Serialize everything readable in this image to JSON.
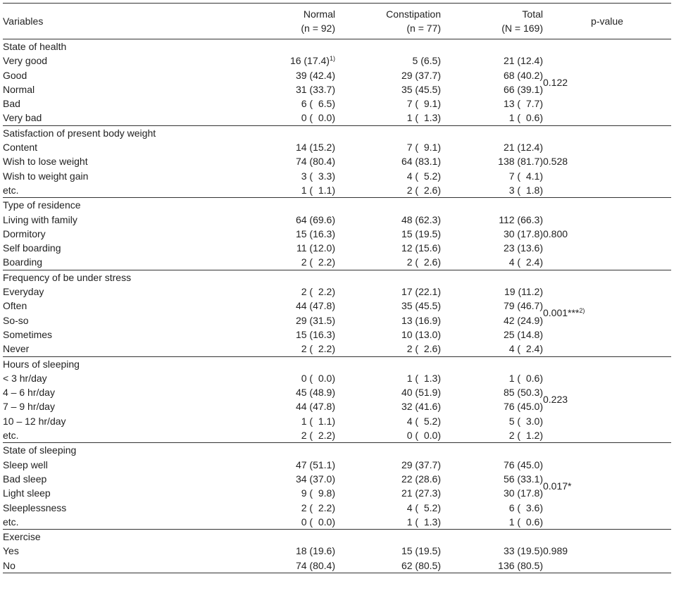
{
  "headers": {
    "variables": "Variables",
    "normal": "Normal",
    "normal_n": "(n = 92)",
    "constipation": "Constipation",
    "constipation_n": "(n = 77)",
    "total": "Total",
    "total_n": "(N = 169)",
    "pvalue": "p-value"
  },
  "sections": [
    {
      "title": "State of health",
      "pvalue": "0.122",
      "rows": [
        {
          "label": "Very good",
          "normal": "16 (17.4)",
          "normal_sup": "1)",
          "constipation": "5 (6.5)",
          "total": "21 (12.4)"
        },
        {
          "label": "Good",
          "normal": "39 (42.4)",
          "constipation": "29 (37.7)",
          "total": "68 (40.2)"
        },
        {
          "label": "Normal",
          "normal": "31 (33.7)",
          "constipation": "35 (45.5)",
          "total": "66 (39.1)"
        },
        {
          "label": "Bad",
          "normal": "6 (  6.5)",
          "constipation": "7 (  9.1)",
          "total": "13 (  7.7)"
        },
        {
          "label": "Very bad",
          "normal": "0 (  0.0)",
          "constipation": "1 (  1.3)",
          "total": "1 (  0.6)"
        }
      ]
    },
    {
      "title": "Satisfaction of present body weight",
      "pvalue": "0.528",
      "rows": [
        {
          "label": "Content",
          "normal": "14 (15.2)",
          "constipation": "7 (  9.1)",
          "total": "21 (12.4)"
        },
        {
          "label": "Wish to lose weight",
          "normal": "74 (80.4)",
          "constipation": "64 (83.1)",
          "total": "138 (81.7)"
        },
        {
          "label": "Wish to weight gain",
          "normal": "3 (  3.3)",
          "constipation": "4 (  5.2)",
          "total": "7 (  4.1)"
        },
        {
          "label": "etc.",
          "normal": "1 (  1.1)",
          "constipation": "2 (  2.6)",
          "total": "3 (  1.8)"
        }
      ]
    },
    {
      "title": "Type of residence",
      "pvalue": "0.800",
      "rows": [
        {
          "label": "Living with family",
          "normal": "64 (69.6)",
          "constipation": "48 (62.3)",
          "total": "112 (66.3)"
        },
        {
          "label": "Dormitory",
          "normal": "15 (16.3)",
          "constipation": "15 (19.5)",
          "total": "30 (17.8)"
        },
        {
          "label": "Self boarding",
          "normal": "11 (12.0)",
          "constipation": "12 (15.6)",
          "total": "23 (13.6)"
        },
        {
          "label": "Boarding",
          "normal": "2 (  2.2)",
          "constipation": "2 (  2.6)",
          "total": "4 (  2.4)"
        }
      ]
    },
    {
      "title": "Frequency of be under stress",
      "pvalue": "0.001***",
      "pvalue_sup": "2)",
      "rows": [
        {
          "label": "Everyday",
          "normal": "2 (  2.2)",
          "constipation": "17 (22.1)",
          "total": "19 (11.2)"
        },
        {
          "label": "Often",
          "normal": "44 (47.8)",
          "constipation": "35 (45.5)",
          "total": "79 (46.7)"
        },
        {
          "label": "So-so",
          "normal": "29 (31.5)",
          "constipation": "13 (16.9)",
          "total": "42 (24.9)"
        },
        {
          "label": "Sometimes",
          "normal": "15 (16.3)",
          "constipation": "10 (13.0)",
          "total": "25 (14.8)"
        },
        {
          "label": "Never",
          "normal": "2 (  2.2)",
          "constipation": "2 (  2.6)",
          "total": "4 (  2.4)"
        }
      ]
    },
    {
      "title": "Hours of sleeping",
      "pvalue": "0.223",
      "rows": [
        {
          "label": "< 3 hr/day",
          "normal": "0 (  0.0)",
          "constipation": "1 (  1.3)",
          "total": "1 (  0.6)"
        },
        {
          "label": "4 – 6 hr/day",
          "normal": "45 (48.9)",
          "constipation": "40 (51.9)",
          "total": "85 (50.3)"
        },
        {
          "label": "7 – 9 hr/day",
          "normal": "44 (47.8)",
          "constipation": "32 (41.6)",
          "total": "76 (45.0)"
        },
        {
          "label": "10 – 12 hr/day",
          "normal": "1 (  1.1)",
          "constipation": "4 (  5.2)",
          "total": "5 (  3.0)"
        },
        {
          "label": "etc.",
          "normal": "2 (  2.2)",
          "constipation": "0 (  0.0)",
          "total": "2 (  1.2)"
        }
      ]
    },
    {
      "title": "State of sleeping",
      "pvalue": "0.017*",
      "rows": [
        {
          "label": "Sleep well",
          "normal": "47 (51.1)",
          "constipation": "29 (37.7)",
          "total": "76 (45.0)"
        },
        {
          "label": "Bad sleep",
          "normal": "34 (37.0)",
          "constipation": "22 (28.6)",
          "total": "56 (33.1)"
        },
        {
          "label": "Light sleep",
          "normal": "9 (  9.8)",
          "constipation": "21 (27.3)",
          "total": "30 (17.8)"
        },
        {
          "label": "Sleeplessness",
          "normal": "2 (  2.2)",
          "constipation": "4 (  5.2)",
          "total": "6 (  3.6)"
        },
        {
          "label": "etc.",
          "normal": "0 (  0.0)",
          "constipation": "1 (  1.3)",
          "total": "1 (  0.6)"
        }
      ]
    },
    {
      "title": "Exercise",
      "pvalue": "0.989",
      "rows": [
        {
          "label": "Yes",
          "normal": "18 (19.6)",
          "constipation": "15 (19.5)",
          "total": "33 (19.5)"
        },
        {
          "label": "No",
          "normal": "74 (80.4)",
          "constipation": "62 (80.5)",
          "total": "136 (80.5)"
        }
      ]
    }
  ]
}
